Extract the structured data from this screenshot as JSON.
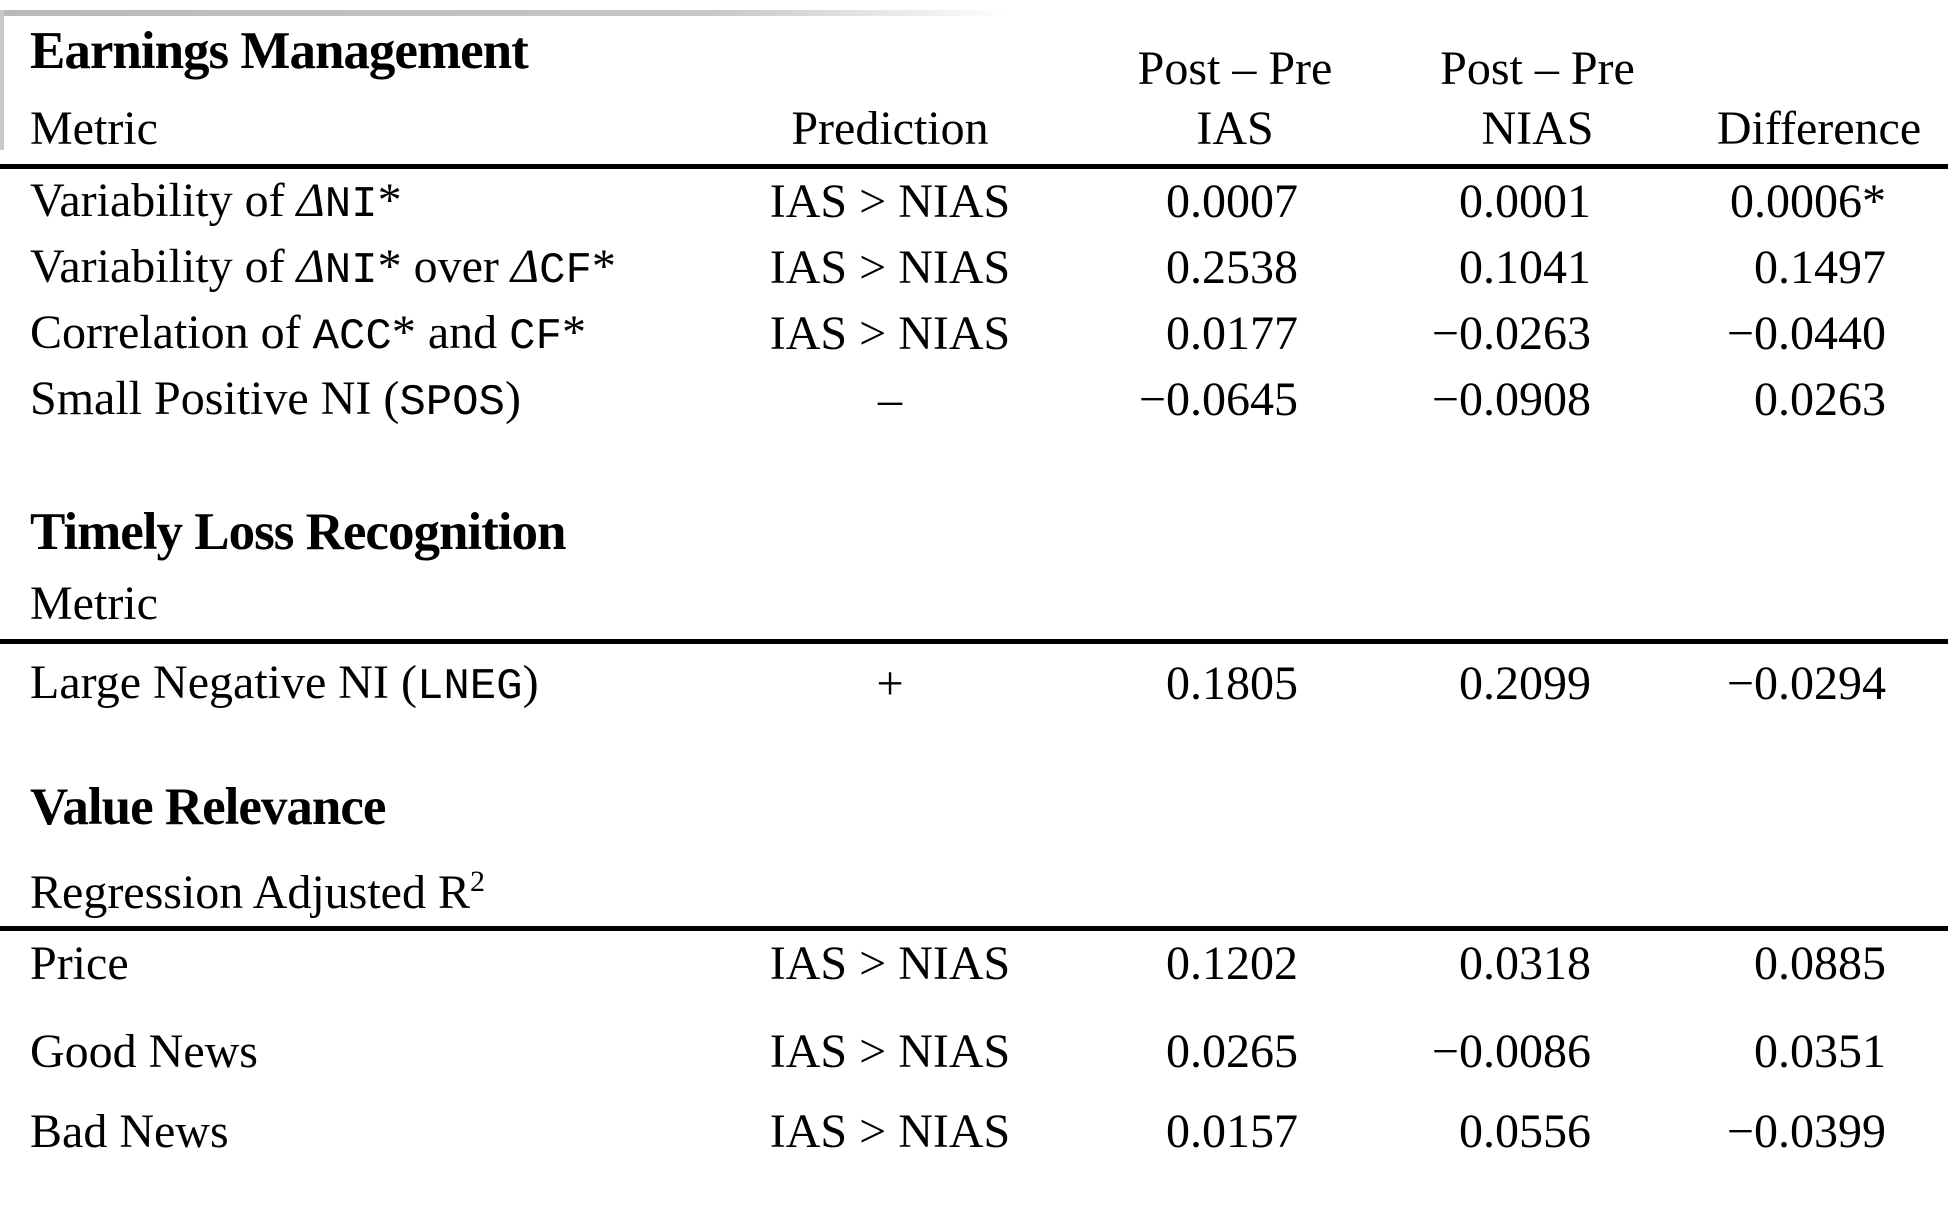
{
  "page": {
    "background": "#ffffff",
    "text_color": "#000000"
  },
  "header": {
    "post_pre": "Post – Pre",
    "metric": "Metric",
    "prediction": "Prediction",
    "ias": "IAS",
    "nias": "NIAS",
    "difference": "Difference"
  },
  "sections": [
    {
      "title": "Earnings Management",
      "rows": [
        {
          "metric_parts": [
            {
              "t": "Variability of ",
              "s": "plain"
            },
            {
              "t": "Δ",
              "s": "italic"
            },
            {
              "t": "NI",
              "s": "mono"
            },
            {
              "t": "*",
              "s": "plain"
            }
          ],
          "prediction": "IAS > NIAS",
          "ias": "0.0007",
          "nias": "0.0001",
          "difference": "0.0006*"
        },
        {
          "metric_parts": [
            {
              "t": "Variability of ",
              "s": "plain"
            },
            {
              "t": "Δ",
              "s": "italic"
            },
            {
              "t": "NI",
              "s": "mono"
            },
            {
              "t": "* over ",
              "s": "plain"
            },
            {
              "t": "Δ",
              "s": "italic"
            },
            {
              "t": "CF",
              "s": "mono"
            },
            {
              "t": "*",
              "s": "plain"
            }
          ],
          "prediction": "IAS > NIAS",
          "ias": "0.2538",
          "nias": "0.1041",
          "difference": "0.1497"
        },
        {
          "metric_parts": [
            {
              "t": "Correlation of ",
              "s": "plain"
            },
            {
              "t": "ACC",
              "s": "mono"
            },
            {
              "t": "* and ",
              "s": "plain"
            },
            {
              "t": "CF",
              "s": "mono"
            },
            {
              "t": "*",
              "s": "plain"
            }
          ],
          "prediction": "IAS > NIAS",
          "ias": "0.0177",
          "nias": "−0.0263",
          "difference": "−0.0440"
        },
        {
          "metric_parts": [
            {
              "t": "Small Positive NI (",
              "s": "plain"
            },
            {
              "t": "SPOS",
              "s": "mono"
            },
            {
              "t": ")",
              "s": "plain"
            }
          ],
          "prediction": "–",
          "ias": "−0.0645",
          "nias": "−0.0908",
          "difference": "0.0263"
        }
      ]
    },
    {
      "title": "Timely Loss Recognition",
      "subhead_parts": [
        {
          "t": "Metric",
          "s": "plain"
        }
      ],
      "rows": [
        {
          "metric_parts": [
            {
              "t": "Large Negative NI (",
              "s": "plain"
            },
            {
              "t": "LNEG",
              "s": "mono"
            },
            {
              "t": ")",
              "s": "plain"
            }
          ],
          "prediction": "+",
          "ias": "0.1805",
          "nias": "0.2099",
          "difference": "−0.0294"
        }
      ]
    },
    {
      "title": "Value Relevance",
      "subhead_parts": [
        {
          "t": "Regression Adjusted R",
          "s": "plain"
        },
        {
          "t": "2",
          "s": "sup"
        }
      ],
      "rows": [
        {
          "metric_parts": [
            {
              "t": "Price",
              "s": "plain"
            }
          ],
          "prediction": "IAS > NIAS",
          "ias": "0.1202",
          "nias": "0.0318",
          "difference": "0.0885"
        },
        {
          "metric_parts": [
            {
              "t": "Good News",
              "s": "plain"
            }
          ],
          "prediction": "IAS > NIAS",
          "ias": "0.0265",
          "nias": "−0.0086",
          "difference": "0.0351"
        },
        {
          "metric_parts": [
            {
              "t": "Bad News",
              "s": "plain"
            }
          ],
          "prediction": "IAS > NIAS",
          "ias": "0.0157",
          "nias": "0.0556",
          "difference": "−0.0399"
        }
      ]
    }
  ]
}
